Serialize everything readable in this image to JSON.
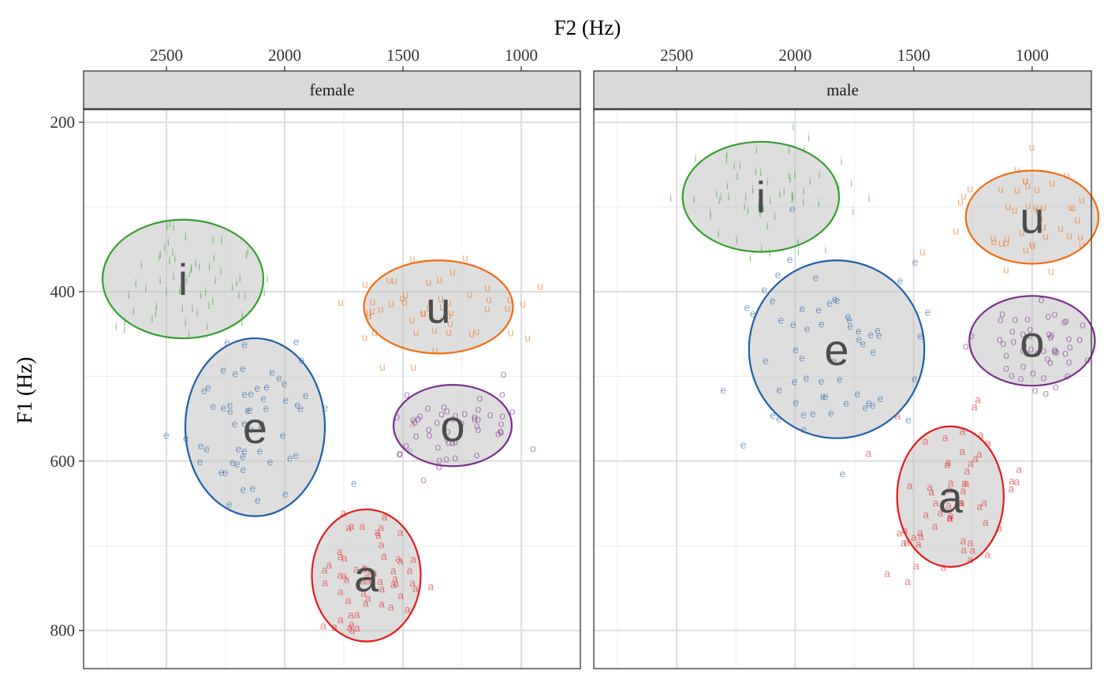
{
  "chart_data": {
    "type": "scatter",
    "xlabel": "F2 (Hz)",
    "ylabel": "F1 (Hz)",
    "x_reversed": true,
    "y_reversed": true,
    "x_axis_position": "top",
    "xlim": [
      2850,
      750
    ],
    "ylim": [
      185,
      845
    ],
    "x_ticks": [
      2500,
      2000,
      1500,
      1000
    ],
    "x_tick_labels": [
      "2500",
      "2000",
      "1500",
      "1000"
    ],
    "y_ticks": [
      200,
      400,
      600,
      800
    ],
    "y_tick_labels": [
      "200",
      "400",
      "600",
      "800"
    ],
    "grid": true,
    "vowels": [
      "i",
      "e",
      "a",
      "o",
      "u"
    ],
    "colors": {
      "i": "#33a02c",
      "e": "#1f5fa6",
      "a": "#e31a1c",
      "o": "#7b2e8e",
      "u": "#f26b0f"
    },
    "panels": [
      {
        "strip": "female",
        "groups": [
          {
            "vowel": "i",
            "mean_f2": 2430,
            "mean_f1": 385,
            "sd_f2": 340,
            "sd_f1": 70,
            "n": 60
          },
          {
            "vowel": "e",
            "mean_f2": 2125,
            "mean_f1": 560,
            "sd_f2": 295,
            "sd_f1": 105,
            "n": 60
          },
          {
            "vowel": "a",
            "mean_f2": 1655,
            "mean_f1": 735,
            "sd_f2": 230,
            "sd_f1": 78,
            "n": 60
          },
          {
            "vowel": "o",
            "mean_f2": 1290,
            "mean_f1": 558,
            "sd_f2": 250,
            "sd_f1": 48,
            "n": 50
          },
          {
            "vowel": "u",
            "mean_f2": 1350,
            "mean_f1": 418,
            "sd_f2": 315,
            "sd_f1": 55,
            "n": 50
          }
        ]
      },
      {
        "strip": "male",
        "groups": [
          {
            "vowel": "i",
            "mean_f2": 2145,
            "mean_f1": 288,
            "sd_f2": 330,
            "sd_f1": 65,
            "n": 60
          },
          {
            "vowel": "e",
            "mean_f2": 1825,
            "mean_f1": 468,
            "sd_f2": 370,
            "sd_f1": 105,
            "n": 60
          },
          {
            "vowel": "a",
            "mean_f2": 1345,
            "mean_f1": 642,
            "sd_f2": 225,
            "sd_f1": 83,
            "n": 60
          },
          {
            "vowel": "o",
            "mean_f2": 1000,
            "mean_f1": 458,
            "sd_f2": 265,
            "sd_f1": 53,
            "n": 50
          },
          {
            "vowel": "u",
            "mean_f2": 1000,
            "mean_f1": 312,
            "sd_f2": 280,
            "sd_f1": 55,
            "n": 50
          }
        ]
      }
    ]
  }
}
